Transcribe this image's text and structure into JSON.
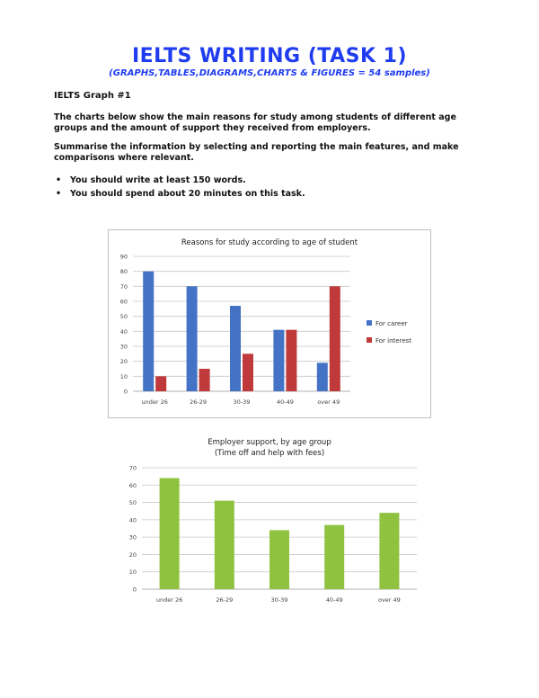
{
  "header": {
    "title": "IELTS WRITING (TASK 1)",
    "subtitle": "(GRAPHS,TABLES,DIAGRAMS,CHARTS & FIGURES = 54 samples)"
  },
  "task": {
    "label": "IELTS Graph #1",
    "paragraph1": "The charts below show the main reasons for study among students of different age groups and the amount of support they received from employers.",
    "paragraph2": "Summarise the information by selecting and reporting the main features, and make comparisons where relevant.",
    "bullets": [
      "You should write at least 150 words.",
      "You should spend about 20 minutes on this task."
    ]
  },
  "chart_data": [
    {
      "type": "bar",
      "title": "Reasons for study according to age of student",
      "categories": [
        "under 26",
        "26-29",
        "30-39",
        "40-49",
        "over 49"
      ],
      "series": [
        {
          "name": "For career",
          "values": [
            80,
            70,
            57,
            41,
            19
          ],
          "color": "#4472c4"
        },
        {
          "name": "For interest",
          "values": [
            10,
            15,
            25,
            41,
            70
          ],
          "color": "#c0393b"
        }
      ],
      "ylim": [
        0,
        90
      ],
      "yticks": [
        0,
        10,
        20,
        30,
        40,
        50,
        60,
        70,
        80,
        90
      ],
      "grid": true,
      "legend": "right"
    },
    {
      "type": "bar",
      "title": "Employer support, by age group",
      "subtitle": "(Time off and help with fees)",
      "categories": [
        "under 26",
        "26-29",
        "30-39",
        "40-49",
        "over 49"
      ],
      "values": [
        64,
        51,
        34,
        37,
        44
      ],
      "color": "#8fc23e",
      "ylim": [
        0,
        70
      ],
      "yticks": [
        0,
        10,
        20,
        30,
        40,
        50,
        60,
        70
      ],
      "grid": true
    }
  ]
}
